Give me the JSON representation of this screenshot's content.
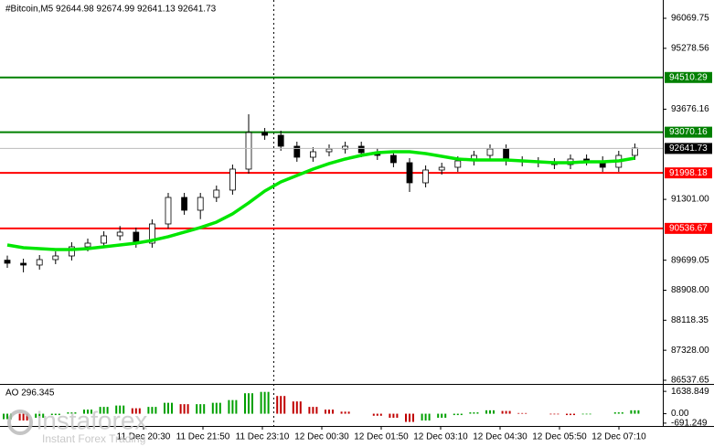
{
  "chart_data": {
    "type": "candlestick",
    "title": "#Bitcoin,M5  92644.98 92674.99 92641.13 92641.73",
    "open": [
      89700,
      89619,
      89571,
      89715,
      89811,
      90052,
      90148,
      90341,
      90437,
      90148,
      90654,
      91352,
      91015,
      91352,
      91545,
      92098,
      93061,
      92989,
      92700,
      92411,
      92555,
      92628,
      92700,
      92531,
      92459,
      92267,
      91737,
      92074,
      92146,
      92315,
      92459,
      92628,
      92315,
      92291,
      92267,
      92218,
      92363,
      92315,
      92146,
      92459
    ],
    "high": [
      89820,
      89739,
      89835,
      89931,
      90172,
      90268,
      90461,
      90600,
      90557,
      90774,
      91472,
      91472,
      91472,
      91665,
      92218,
      93542,
      93181,
      93109,
      92820,
      92675,
      92748,
      92820,
      92820,
      92651,
      92579,
      92387,
      92194,
      92266,
      92435,
      92579,
      92748,
      92748,
      92435,
      92411,
      92387,
      92483,
      92483,
      92435,
      92579,
      92772
    ],
    "low": [
      89499,
      89380,
      89451,
      89595,
      89691,
      89932,
      90028,
      90221,
      90028,
      90028,
      90534,
      90895,
      90780,
      91232,
      91425,
      91978,
      92869,
      92580,
      92291,
      92291,
      92435,
      92508,
      92411,
      92339,
      92147,
      91496,
      91617,
      91954,
      92026,
      92195,
      92339,
      92195,
      92171,
      92147,
      92098,
      92098,
      92195,
      92026,
      92026,
      92339
    ],
    "close": [
      89619,
      89571,
      89715,
      89811,
      90052,
      90148,
      90341,
      90437,
      90148,
      90654,
      91352,
      91015,
      91352,
      91545,
      92098,
      93061,
      92989,
      92700,
      92411,
      92555,
      92628,
      92700,
      92531,
      92459,
      92267,
      91737,
      92074,
      92146,
      92315,
      92459,
      92628,
      92315,
      92291,
      92267,
      92218,
      92363,
      92315,
      92146,
      92459,
      92652
    ],
    "moving_average": {
      "color": "#00e600",
      "values": [
        90100,
        90028,
        90004,
        89980,
        89980,
        90004,
        90052,
        90100,
        90148,
        90221,
        90317,
        90437,
        90558,
        90702,
        90919,
        91208,
        91520,
        91761,
        91930,
        92098,
        92243,
        92363,
        92459,
        92531,
        92555,
        92555,
        92507,
        92435,
        92363,
        92339,
        92339,
        92339,
        92315,
        92291,
        92267,
        92267,
        92291,
        92291,
        92315,
        92387
      ]
    },
    "levels": [
      {
        "value": 94510.29,
        "color": "#008000"
      },
      {
        "value": 93070.16,
        "color": "#008000"
      },
      {
        "value": 91998.18,
        "color": "#ff0000"
      },
      {
        "value": 90536.67,
        "color": "#ff0000"
      }
    ],
    "current_price": 92641.73,
    "ylim": [
      86441,
      96551
    ],
    "yticks": [
      96069.75,
      95278.56,
      93676.16,
      {
        "value": 91301,
        "label": "91301.00"
      },
      89699.05,
      {
        "value": 88908,
        "label": "88908.00"
      },
      88118.35,
      {
        "value": 87328,
        "label": "87328.00"
      },
      86537.65
    ],
    "time_labels": [
      "11 Dec 20:30",
      "11 Dec 21:50",
      "11 Dec 23:10",
      "12 Dec 00:30",
      "12 Dec 01:50",
      "12 Dec 03:10",
      "12 Dec 04:30",
      "12 Dec 05:50",
      "12 Dec 07:10"
    ],
    "indicator": {
      "label": "AO 296.345",
      "values": [
        -400,
        -500,
        -300,
        -100,
        100,
        300,
        500,
        600,
        400,
        500,
        800,
        700,
        700,
        800,
        1000,
        1500,
        1600,
        1300,
        900,
        500,
        300,
        150,
        0,
        -150,
        -300,
        -600,
        -500,
        -300,
        -100,
        100,
        250,
        200,
        50,
        0,
        -50,
        -100,
        -50,
        0,
        100,
        250
      ],
      "ylim": [
        -900,
        2050
      ],
      "yticks": [
        1638.849,
        {
          "value": 0,
          "label": "0.00"
        },
        -691.249
      ]
    }
  },
  "watermark": {
    "brand": "instaforex",
    "tagline": "Instant Forex Trading"
  }
}
